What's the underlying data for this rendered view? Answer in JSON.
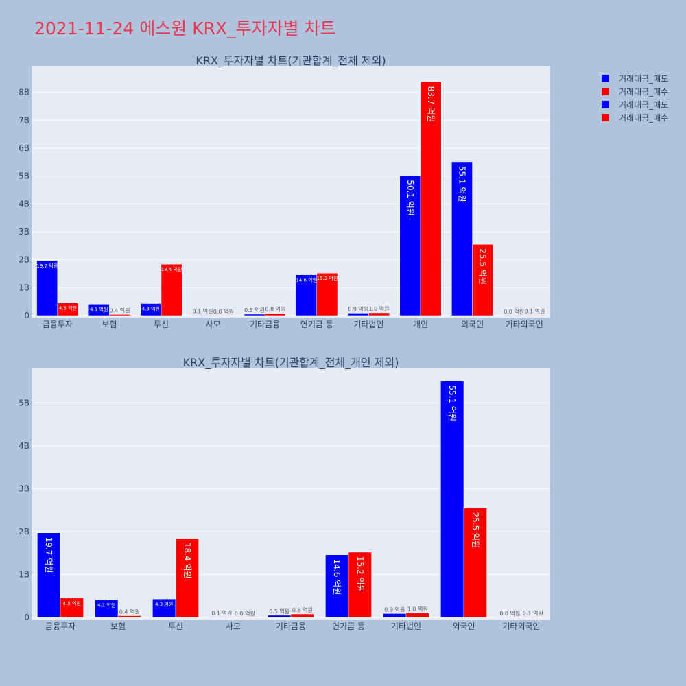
{
  "page_title": "2021-11-24 에스원 KRX_투자자별 차트",
  "colors": {
    "sell": "#0000ff",
    "buy": "#ff0000",
    "plot_bg": "#e5ecf6",
    "paper_bg": "#b0c4de",
    "title": "#e8384f"
  },
  "legend": {
    "placement": "top-right",
    "items": [
      {
        "label": "거래대금_매도",
        "color": "#0000ff"
      },
      {
        "label": "거래대금_매수",
        "color": "#ff0000"
      },
      {
        "label": "거래대금_매도",
        "color": "#0000ff"
      },
      {
        "label": "거래대금_매수",
        "color": "#ff0000"
      }
    ]
  },
  "chart_data": [
    {
      "type": "bar",
      "title": "KRX_투자자별 차트(기관합계_전체 제외)",
      "categories": [
        "금융투자",
        "보험",
        "투신",
        "사모",
        "기타금융",
        "연기금 등",
        "기타법인",
        "개인",
        "외국인",
        "기타외국인"
      ],
      "ylim": [
        0,
        8.95
      ],
      "yticks": [
        0,
        1,
        2,
        3,
        4,
        5,
        6,
        7,
        8
      ],
      "ytick_labels": [
        "0",
        "1B",
        "2B",
        "3B",
        "4B",
        "5B",
        "6B",
        "7B",
        "8B"
      ],
      "grid": true,
      "series": [
        {
          "name": "거래대금_매도",
          "color": "#0000ff",
          "values": [
            1.97,
            0.41,
            0.43,
            0.01,
            0.05,
            1.46,
            0.09,
            5.01,
            5.51,
            0.0
          ],
          "labels": [
            "19.7 억원",
            "4.1 억원",
            "4.3 억원",
            "0.1 억원",
            "0.5 억원",
            "14.6 억원",
            "0.9 억원",
            "50.1 억원",
            "55.1 억원",
            "0.0 억원"
          ]
        },
        {
          "name": "거래대금_매수",
          "color": "#ff0000",
          "values": [
            0.45,
            0.04,
            1.84,
            0.0,
            0.08,
            1.52,
            0.1,
            8.37,
            2.55,
            0.01
          ],
          "labels": [
            "4.5 억원",
            "0.4 억원",
            "18.4 억원",
            "0.0 억원",
            "0.8 억원",
            "15.2 억원",
            "1.0 억원",
            "83.7 억원",
            "25.5 억원",
            "0.1 억원"
          ]
        }
      ]
    },
    {
      "type": "bar",
      "title": "KRX_투자자별 차트(기관합계_전체_개인 제외)",
      "categories": [
        "금융투자",
        "보험",
        "투신",
        "사모",
        "기타금융",
        "연기금 등",
        "기타법인",
        "외국인",
        "기타외국인"
      ],
      "ylim": [
        0,
        5.82
      ],
      "yticks": [
        0,
        1,
        2,
        3,
        4,
        5
      ],
      "ytick_labels": [
        "0",
        "1B",
        "2B",
        "3B",
        "4B",
        "5B"
      ],
      "grid": true,
      "series": [
        {
          "name": "거래대금_매도",
          "color": "#0000ff",
          "values": [
            1.97,
            0.41,
            0.43,
            0.01,
            0.05,
            1.46,
            0.09,
            5.51,
            0.0
          ],
          "labels": [
            "19.7 억원",
            "4.1 억원",
            "4.3 억원",
            "0.1 억원",
            "0.5 억원",
            "14.6 억원",
            "0.9 억원",
            "55.1 억원",
            "0.0 억원"
          ]
        },
        {
          "name": "거래대금_매수",
          "color": "#ff0000",
          "values": [
            0.45,
            0.04,
            1.84,
            0.0,
            0.08,
            1.52,
            0.1,
            2.55,
            0.01
          ],
          "labels": [
            "4.5 억원",
            "0.4 억원",
            "18.4 억원",
            "0.0 억원",
            "0.8 억원",
            "15.2 억원",
            "1.0 억원",
            "25.5 억원",
            "0.1 억원"
          ]
        }
      ]
    }
  ]
}
